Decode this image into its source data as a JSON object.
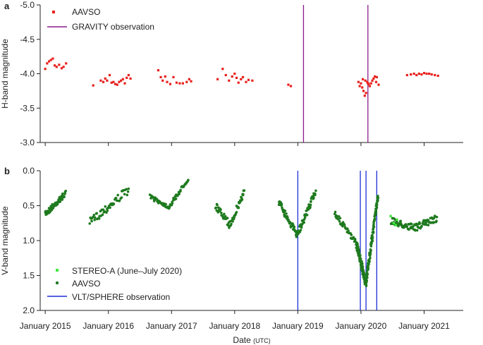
{
  "chart_data": [
    {
      "panel": "a",
      "type": "scatter",
      "title": "",
      "ylabel": "H-band magnitude",
      "ylim": [
        -5.0,
        -3.0
      ],
      "yticks": [
        "-5.0",
        "-4.5",
        "-4.0",
        "-3.5",
        "-3.0"
      ],
      "ytick_values": [
        -5.0,
        -4.5,
        -4.0,
        -3.5,
        -3.0
      ],
      "series": [
        {
          "name": "AAVSO",
          "color": "#e8201c",
          "marker": "square",
          "points": [
            [
              2015.0,
              -4.07
            ],
            [
              2015.03,
              -4.15
            ],
            [
              2015.06,
              -4.18
            ],
            [
              2015.09,
              -4.2
            ],
            [
              2015.12,
              -4.22
            ],
            [
              2015.15,
              -4.12
            ],
            [
              2015.18,
              -4.1
            ],
            [
              2015.22,
              -4.13
            ],
            [
              2015.26,
              -4.08
            ],
            [
              2015.29,
              -4.1
            ],
            [
              2015.33,
              -4.15
            ],
            [
              2015.76,
              -3.83
            ],
            [
              2015.88,
              -3.9
            ],
            [
              2015.92,
              -3.88
            ],
            [
              2015.95,
              -3.93
            ],
            [
              2015.98,
              -3.9
            ],
            [
              2016.02,
              -3.98
            ],
            [
              2016.05,
              -3.87
            ],
            [
              2016.08,
              -3.88
            ],
            [
              2016.11,
              -3.85
            ],
            [
              2016.14,
              -3.84
            ],
            [
              2016.17,
              -3.88
            ],
            [
              2016.2,
              -3.9
            ],
            [
              2016.23,
              -3.92
            ],
            [
              2016.26,
              -3.86
            ],
            [
              2016.29,
              -3.94
            ],
            [
              2016.32,
              -3.98
            ],
            [
              2016.35,
              -3.93
            ],
            [
              2016.79,
              -4.05
            ],
            [
              2016.83,
              -3.95
            ],
            [
              2016.86,
              -3.9
            ],
            [
              2016.9,
              -3.96
            ],
            [
              2016.93,
              -3.88
            ],
            [
              2016.98,
              -3.85
            ],
            [
              2017.03,
              -3.95
            ],
            [
              2017.08,
              -3.87
            ],
            [
              2017.13,
              -3.86
            ],
            [
              2017.18,
              -3.86
            ],
            [
              2017.24,
              -3.88
            ],
            [
              2017.28,
              -3.92
            ],
            [
              2017.31,
              -3.89
            ],
            [
              2017.73,
              -3.92
            ],
            [
              2017.81,
              -4.07
            ],
            [
              2017.86,
              -3.98
            ],
            [
              2017.91,
              -3.9
            ],
            [
              2017.96,
              -3.96
            ],
            [
              2018.0,
              -4.0
            ],
            [
              2018.03,
              -3.94
            ],
            [
              2018.06,
              -3.87
            ],
            [
              2018.1,
              -3.92
            ],
            [
              2018.13,
              -3.95
            ],
            [
              2018.18,
              -3.88
            ],
            [
              2018.22,
              -3.91
            ],
            [
              2018.28,
              -3.9
            ],
            [
              2018.85,
              -3.84
            ],
            [
              2018.89,
              -3.82
            ],
            [
              2019.96,
              -3.88
            ],
            [
              2019.98,
              -3.82
            ],
            [
              2020.0,
              -3.86
            ],
            [
              2020.02,
              -3.8
            ],
            [
              2020.04,
              -3.75
            ],
            [
              2020.06,
              -3.68
            ],
            [
              2020.08,
              -3.72
            ],
            [
              2020.1,
              -3.88
            ],
            [
              2020.12,
              -3.85
            ],
            [
              2020.14,
              -3.82
            ],
            [
              2020.16,
              -3.86
            ],
            [
              2020.18,
              -3.9
            ],
            [
              2020.2,
              -3.93
            ],
            [
              2020.22,
              -3.96
            ],
            [
              2020.25,
              -3.95
            ],
            [
              2020.28,
              -3.84
            ],
            [
              2020.03,
              -3.92
            ],
            [
              2020.07,
              -3.9
            ],
            [
              2020.11,
              -3.86
            ],
            [
              2020.24,
              -3.88
            ],
            [
              2020.73,
              -3.98
            ],
            [
              2020.79,
              -3.99
            ],
            [
              2020.84,
              -4.0
            ],
            [
              2020.88,
              -3.98
            ],
            [
              2020.92,
              -4.0
            ],
            [
              2020.96,
              -3.99
            ],
            [
              2021.0,
              -4.01
            ],
            [
              2021.04,
              -4.0
            ],
            [
              2021.08,
              -4.0
            ],
            [
              2021.12,
              -3.99
            ],
            [
              2021.17,
              -3.98
            ],
            [
              2021.22,
              -3.97
            ]
          ]
        }
      ],
      "vlines": {
        "name": "GRAVITY observation",
        "color": "#8b1a8b",
        "x": [
          2019.09,
          2020.11
        ]
      },
      "legend": [
        "AAVSO",
        "GRAVITY observation"
      ]
    },
    {
      "panel": "b",
      "type": "scatter",
      "title": "",
      "ylabel": "V-band magnitude",
      "xlabel": "Date",
      "xlabel_suffix": "(UTC)",
      "ylim": [
        0.0,
        2.0
      ],
      "yticks": [
        "0.0",
        "0.5",
        "1.0",
        "1.5",
        "2.0"
      ],
      "ytick_values": [
        0.0,
        0.5,
        1.0,
        1.5,
        2.0
      ],
      "xticks": [
        "January 2015",
        "January 2016",
        "January 2017",
        "January 2018",
        "January 2019",
        "January 2020",
        "January 2021"
      ],
      "xtick_values": [
        2015,
        2016,
        2017,
        2018,
        2019,
        2020,
        2021
      ],
      "xlim": [
        2014.92,
        2021.62
      ],
      "series": [
        {
          "name": "STEREO-A (June–July 2020)",
          "color": "#3ee83e",
          "marker": "square",
          "points": [
            [
              2020.47,
              0.65
            ],
            [
              2020.52,
              0.75
            ],
            [
              2020.55,
              0.78
            ],
            [
              2020.57,
              0.7
            ]
          ]
        },
        {
          "name": "AAVSO",
          "color": "#1e7a1e",
          "marker": "circle",
          "segments": [
            {
              "x0": 2015.0,
              "x1": 2015.32,
              "y_start": 0.62,
              "y_end": 0.33,
              "n": 60,
              "spread": 0.04
            },
            {
              "x0": 2015.7,
              "x1": 2016.32,
              "y_start": 0.74,
              "y_end": 0.27,
              "n": 55,
              "spread": 0.06
            },
            {
              "x0": 2016.66,
              "x1": 2017.26,
              "y_start": 0.37,
              "y_end": 0.12,
              "n": 70,
              "spread": 0.03,
              "dip": 0.52
            },
            {
              "x0": 2017.7,
              "x1": 2018.15,
              "y_start": 0.5,
              "y_end": 0.3,
              "n": 70,
              "spread": 0.05,
              "dip": 0.78
            },
            {
              "x0": 2018.7,
              "x1": 2019.28,
              "y_start": 0.45,
              "y_end": 0.3,
              "n": 110,
              "spread": 0.05,
              "dip": 0.92
            },
            {
              "x0": 2019.58,
              "x1": 2019.93,
              "y_start": 0.6,
              "y_end": 1.05,
              "n": 40,
              "spread": 0.04
            },
            {
              "x0": 2019.93,
              "x1": 2020.08,
              "y_start": 1.05,
              "y_end": 1.62,
              "n": 90,
              "spread": 0.06
            },
            {
              "x0": 2020.08,
              "x1": 2020.27,
              "y_start": 1.6,
              "y_end": 0.34,
              "n": 110,
              "spread": 0.06
            },
            {
              "x0": 2020.48,
              "x1": 2021.2,
              "y_start": 0.72,
              "y_end": 0.68,
              "n": 90,
              "spread": 0.05,
              "dip": 0.82
            }
          ]
        }
      ],
      "vlines": {
        "name": "VLT/SPHERE observation",
        "color": "#1c2fd6",
        "x": [
          2019.0,
          2019.99,
          2020.08,
          2020.25
        ]
      },
      "legend": [
        "STEREO-A (June–July 2020)",
        "AAVSO",
        "VLT/SPHERE observation"
      ]
    }
  ]
}
